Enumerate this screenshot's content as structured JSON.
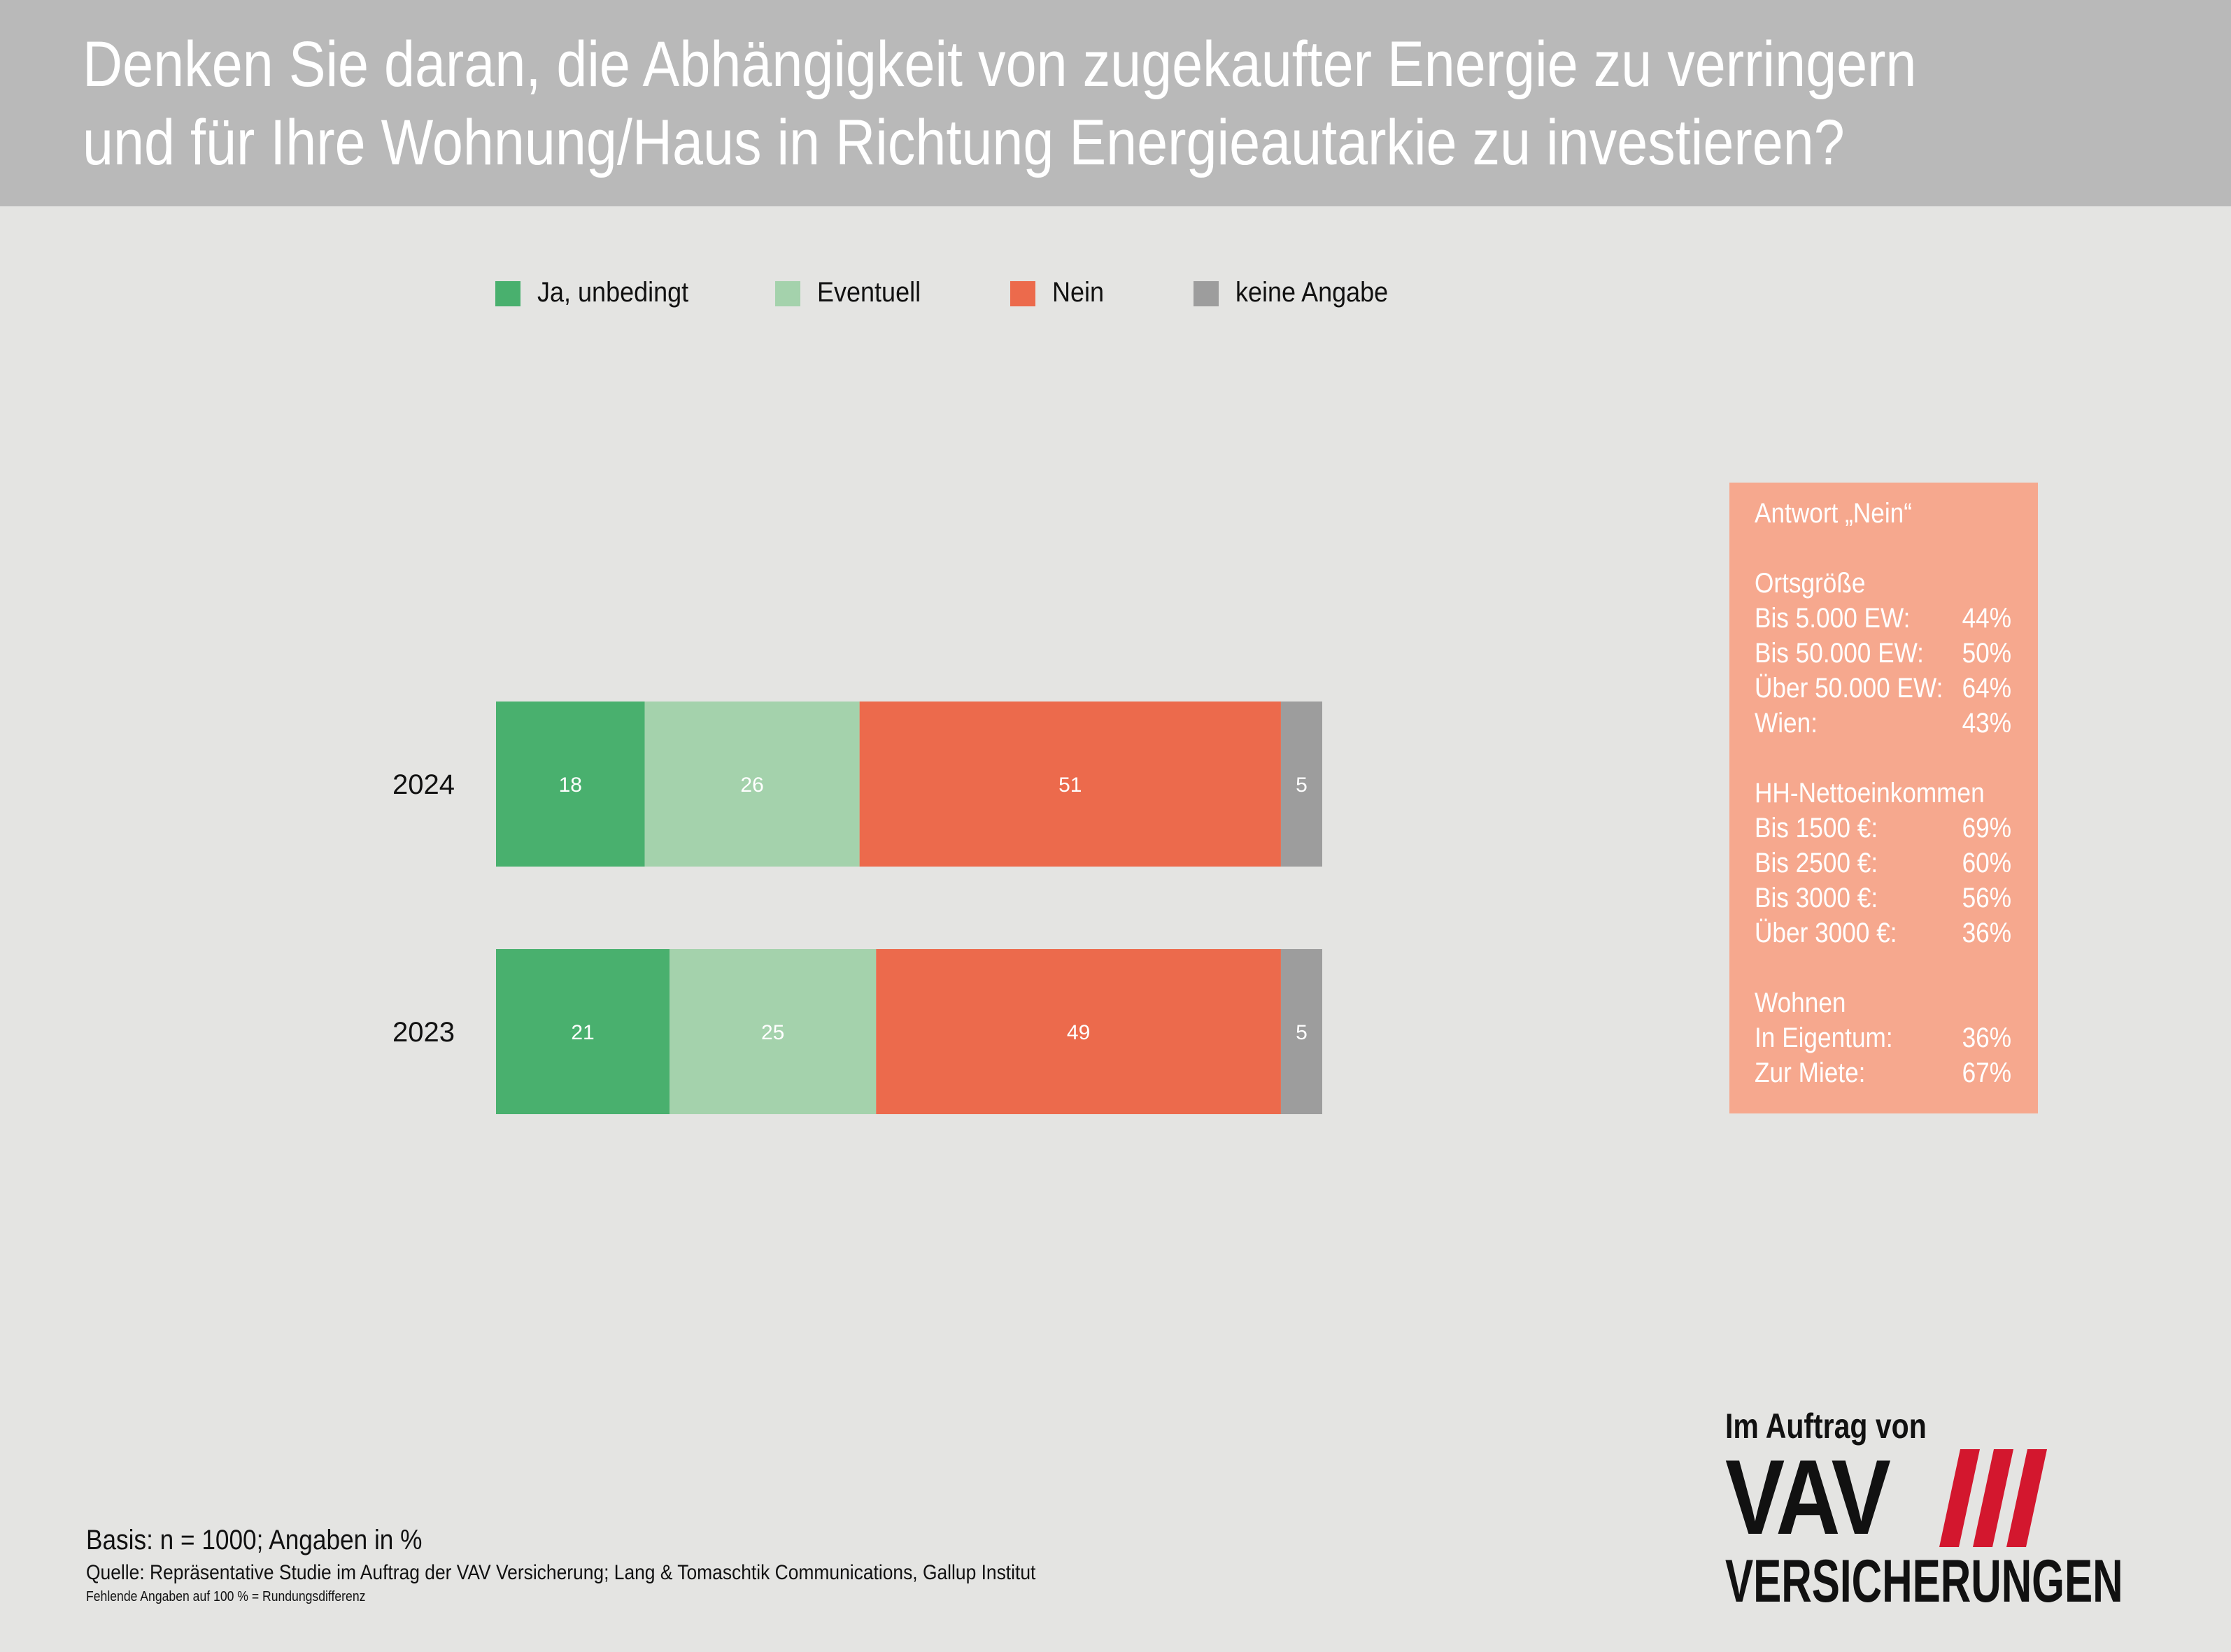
{
  "header": {
    "title_line1": "Denken Sie daran, die Abhängigkeit von zugekaufter Energie zu verringern",
    "title_line2": "und für Ihre Wohnung/Haus in Richtung Energieautarkie zu investieren?"
  },
  "legend": [
    {
      "label": "Ja, unbedingt",
      "color": "#49b06e"
    },
    {
      "label": "Eventuell",
      "color": "#a4d2ac"
    },
    {
      "label": "Nein",
      "color": "#ec6a4c"
    },
    {
      "label": "keine Angabe",
      "color": "#9d9d9d"
    }
  ],
  "chart_data": {
    "type": "bar",
    "orientation": "horizontal",
    "stacked": true,
    "categories": [
      "2024",
      "2023"
    ],
    "series": [
      {
        "name": "Ja, unbedingt",
        "values": [
          18,
          21
        ],
        "color": "#49b06e"
      },
      {
        "name": "Eventuell",
        "values": [
          26,
          25
        ],
        "color": "#a4d2ac"
      },
      {
        "name": "Nein",
        "values": [
          51,
          49
        ],
        "color": "#ec6a4c"
      },
      {
        "name": "keine Angabe",
        "values": [
          5,
          5
        ],
        "color": "#9d9d9d"
      }
    ],
    "xlim": [
      0,
      100
    ],
    "grid": false,
    "legend_position": "top"
  },
  "nein_box": {
    "title": "Antwort „Nein“",
    "groups": [
      {
        "heading": "Ortsgröße",
        "rows": [
          {
            "label": "Bis 5.000 EW:",
            "value": "44%"
          },
          {
            "label": "Bis 50.000 EW:",
            "value": "50%"
          },
          {
            "label": "Über 50.000 EW:",
            "value": "64%"
          },
          {
            "label": "Wien:",
            "value": "43%"
          }
        ]
      },
      {
        "heading": "HH-Nettoeinkommen",
        "rows": [
          {
            "label": "Bis 1500 €:",
            "value": "69%"
          },
          {
            "label": "Bis 2500 €:",
            "value": "60%"
          },
          {
            "label": "Bis 3000 €:",
            "value": "56%"
          },
          {
            "label": "Über 3000 €:",
            "value": "36%"
          }
        ]
      },
      {
        "heading": "Wohnen",
        "rows": [
          {
            "label": "In Eigentum:",
            "value": "36%"
          },
          {
            "label": "Zur Miete:",
            "value": "67%"
          }
        ]
      }
    ]
  },
  "footer": {
    "basis": "Basis: n = 1000; Angaben in %",
    "source": "Quelle: Repräsentative Studie im Auftrag der VAV Versicherung; Lang & Tomaschtik Communications, Gallup Institut",
    "note": "Fehlende Angaben auf 100 % = Rundungsdifferenz"
  },
  "logo": {
    "top": "Im Auftrag von",
    "brand": "VAV",
    "bottom": "VERSICHERUNGEN",
    "stripe_color": "#d3172e"
  }
}
